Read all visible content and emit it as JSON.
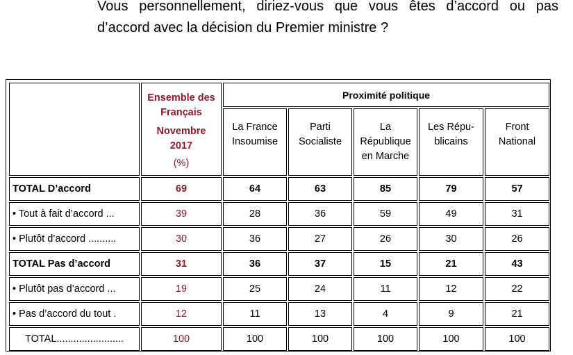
{
  "question": {
    "line1": "Vous personnellement, diriez-vous que vous êtes d’accord ou pas",
    "line2": "d’accord avec la décision du Premier ministre ?"
  },
  "table": {
    "ensemble_header": {
      "line1": "Ensemble des",
      "line2": "Français",
      "line3": "Novembre",
      "line4": "2017",
      "line5": "(%)"
    },
    "proximite_header": "Proximité politique",
    "parties": [
      {
        "line1": "La France",
        "line2": "Insoumise",
        "line3": ""
      },
      {
        "line1": "Parti",
        "line2": "Socialiste",
        "line3": ""
      },
      {
        "line1": "La",
        "line2": "République",
        "line3": "en Marche"
      },
      {
        "line1": "Les Répu-",
        "line2": "blicains",
        "line3": ""
      },
      {
        "line1": "Front",
        "line2": "National",
        "line3": ""
      }
    ],
    "rows": [
      {
        "label": "TOTAL D’accord",
        "ensemble": "69",
        "values": [
          "64",
          "63",
          "85",
          "79",
          "57"
        ]
      },
      {
        "label": "• Tout à fait d’accord ...",
        "ensemble": "39",
        "values": [
          "28",
          "36",
          "59",
          "49",
          "31"
        ]
      },
      {
        "label": "• Plutôt d’accord ..........",
        "ensemble": "30",
        "values": [
          "36",
          "27",
          "26",
          "30",
          "26"
        ]
      },
      {
        "label": "TOTAL Pas d’accord",
        "ensemble": "31",
        "values": [
          "36",
          "37",
          "15",
          "21",
          "43"
        ]
      },
      {
        "label": "• Plutôt pas d’accord ...",
        "ensemble": "19",
        "values": [
          "25",
          "24",
          "11",
          "12",
          "22"
        ]
      },
      {
        "label": "• Pas d’accord du tout .",
        "ensemble": "12",
        "values": [
          "11",
          "13",
          "4",
          "9",
          "21"
        ]
      },
      {
        "label": "TOTAL........................",
        "ensemble": "100",
        "values": [
          "100",
          "100",
          "100",
          "100",
          "100"
        ]
      }
    ]
  },
  "colors": {
    "ensemble_accent": "#8b1a2b"
  }
}
